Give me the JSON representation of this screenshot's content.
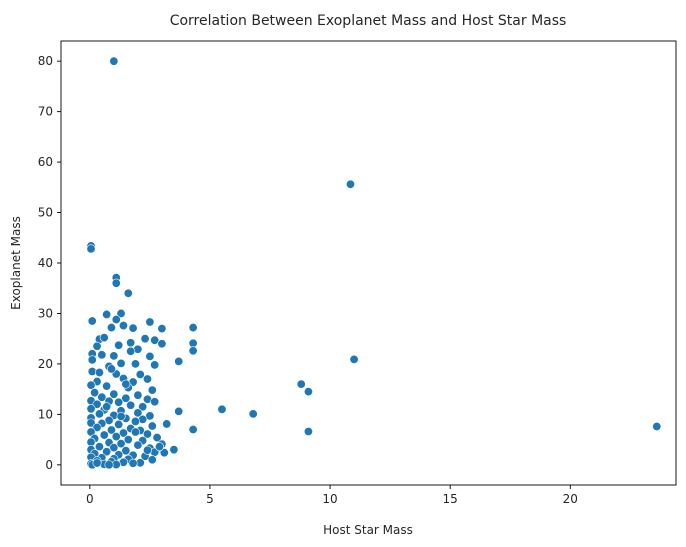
{
  "chart_data": {
    "type": "scatter",
    "title": "Correlation Between Exoplanet Mass and Host Star Mass",
    "xlabel": "Host Star Mass",
    "ylabel": "Exoplanet Mass",
    "xlim": [
      -1.2,
      24.4
    ],
    "ylim": [
      -4,
      84
    ],
    "xticks": [
      0,
      5,
      10,
      15,
      20
    ],
    "yticks": [
      0,
      10,
      20,
      30,
      40,
      50,
      60,
      70,
      80
    ],
    "grid": false,
    "legend": "none",
    "point_color": "#1f77b4",
    "points": [
      [
        1.0,
        80.0
      ],
      [
        10.85,
        55.6
      ],
      [
        0.05,
        43.4
      ],
      [
        0.05,
        42.8
      ],
      [
        1.1,
        37.1
      ],
      [
        1.1,
        36.0
      ],
      [
        1.6,
        34.0
      ],
      [
        1.3,
        30.0
      ],
      [
        0.7,
        29.8
      ],
      [
        0.1,
        28.5
      ],
      [
        1.1,
        28.8
      ],
      [
        2.5,
        28.3
      ],
      [
        0.9,
        27.2
      ],
      [
        1.4,
        27.6
      ],
      [
        1.8,
        27.1
      ],
      [
        3.0,
        27.0
      ],
      [
        4.3,
        27.2
      ],
      [
        2.3,
        25.0
      ],
      [
        0.4,
        24.9
      ],
      [
        0.6,
        25.2
      ],
      [
        2.7,
        24.7
      ],
      [
        1.7,
        24.2
      ],
      [
        3.0,
        24.0
      ],
      [
        4.3,
        24.1
      ],
      [
        0.3,
        23.5
      ],
      [
        1.2,
        23.7
      ],
      [
        2.0,
        22.9
      ],
      [
        4.3,
        22.6
      ],
      [
        0.1,
        22.0
      ],
      [
        0.5,
        21.8
      ],
      [
        1.0,
        21.6
      ],
      [
        2.5,
        21.5
      ],
      [
        11.0,
        20.9
      ],
      [
        0.1,
        20.8
      ],
      [
        1.3,
        20.1
      ],
      [
        1.9,
        20.0
      ],
      [
        2.7,
        19.8
      ],
      [
        3.7,
        20.5
      ],
      [
        0.8,
        19.5
      ],
      [
        0.1,
        18.5
      ],
      [
        0.4,
        18.3
      ],
      [
        1.1,
        18.0
      ],
      [
        2.1,
        17.9
      ],
      [
        1.4,
        17.1
      ],
      [
        2.4,
        17.0
      ],
      [
        0.3,
        16.5
      ],
      [
        1.8,
        16.4
      ],
      [
        8.8,
        16.0
      ],
      [
        0.05,
        15.8
      ],
      [
        0.7,
        15.6
      ],
      [
        1.6,
        15.3
      ],
      [
        2.6,
        14.8
      ],
      [
        9.1,
        14.5
      ],
      [
        0.2,
        14.3
      ],
      [
        1.0,
        14.0
      ],
      [
        2.0,
        13.8
      ],
      [
        0.5,
        13.4
      ],
      [
        1.5,
        13.2
      ],
      [
        2.4,
        13.0
      ],
      [
        0.05,
        12.7
      ],
      [
        0.8,
        12.6
      ],
      [
        1.2,
        12.4
      ],
      [
        2.7,
        12.5
      ],
      [
        0.3,
        12.0
      ],
      [
        1.7,
        11.8
      ],
      [
        2.2,
        11.5
      ],
      [
        5.5,
        11.0
      ],
      [
        0.05,
        11.1
      ],
      [
        0.6,
        10.9
      ],
      [
        1.3,
        10.7
      ],
      [
        3.7,
        10.6
      ],
      [
        2.0,
        10.3
      ],
      [
        0.4,
        10.1
      ],
      [
        6.8,
        10.1
      ],
      [
        1.0,
        9.8
      ],
      [
        2.5,
        9.7
      ],
      [
        0.05,
        9.3
      ],
      [
        1.5,
        9.2
      ],
      [
        2.2,
        9.0
      ],
      [
        0.8,
        8.8
      ],
      [
        1.9,
        8.6
      ],
      [
        0.05,
        8.3
      ],
      [
        0.5,
        8.2
      ],
      [
        1.2,
        8.0
      ],
      [
        3.2,
        8.1
      ],
      [
        2.6,
        7.7
      ],
      [
        23.6,
        7.6
      ],
      [
        0.3,
        7.4
      ],
      [
        1.7,
        7.2
      ],
      [
        4.3,
        7.0
      ],
      [
        0.9,
        6.9
      ],
      [
        2.1,
        6.8
      ],
      [
        9.1,
        6.6
      ],
      [
        0.05,
        6.5
      ],
      [
        1.4,
        6.3
      ],
      [
        2.4,
        6.1
      ],
      [
        0.6,
        5.9
      ],
      [
        1.1,
        5.6
      ],
      [
        2.8,
        5.4
      ],
      [
        0.2,
        5.2
      ],
      [
        1.6,
        5.0
      ],
      [
        2.2,
        4.8
      ],
      [
        0.05,
        4.5
      ],
      [
        0.8,
        4.4
      ],
      [
        1.3,
        4.2
      ],
      [
        3.0,
        4.1
      ],
      [
        2.0,
        3.9
      ],
      [
        0.4,
        3.6
      ],
      [
        1.0,
        3.4
      ],
      [
        2.5,
        3.3
      ],
      [
        3.5,
        3.0
      ],
      [
        0.05,
        3.0
      ],
      [
        1.5,
        2.8
      ],
      [
        0.7,
        2.6
      ],
      [
        2.7,
        2.5
      ],
      [
        3.1,
        2.4
      ],
      [
        0.2,
        2.2
      ],
      [
        1.2,
        2.0
      ],
      [
        1.8,
        1.9
      ],
      [
        2.3,
        1.7
      ],
      [
        0.05,
        1.5
      ],
      [
        0.5,
        1.4
      ],
      [
        1.0,
        1.2
      ],
      [
        1.6,
        1.1
      ],
      [
        2.6,
        1.0
      ],
      [
        0.3,
        0.8
      ],
      [
        0.9,
        0.6
      ],
      [
        1.4,
        0.5
      ],
      [
        2.1,
        0.4
      ],
      [
        0.05,
        0.2
      ],
      [
        0.6,
        0.1
      ],
      [
        1.1,
        0.05
      ],
      [
        0.1,
        0.0
      ],
      [
        0.8,
        0.0
      ],
      [
        0.3,
        0.35
      ],
      [
        1.8,
        0.3
      ],
      [
        2.9,
        3.6
      ],
      [
        2.4,
        2.9
      ],
      [
        1.9,
        6.5
      ],
      [
        1.3,
        9.6
      ],
      [
        0.7,
        11.5
      ],
      [
        1.5,
        16.0
      ],
      [
        0.9,
        19.0
      ],
      [
        1.7,
        22.5
      ]
    ]
  }
}
